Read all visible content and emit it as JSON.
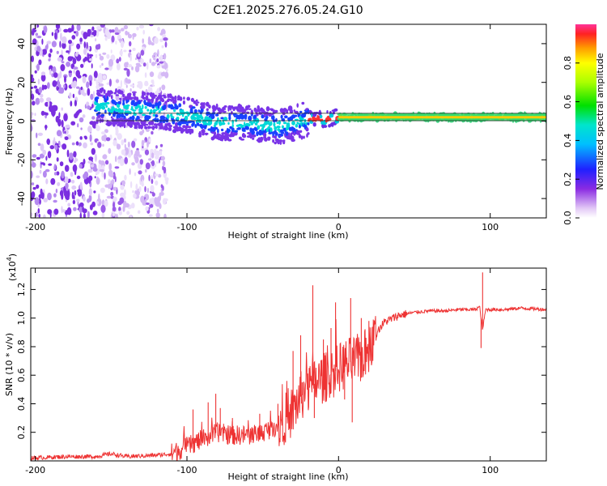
{
  "title": "C2E1.2025.276.05.24.G10",
  "chart_data": [
    {
      "type": "heatmap",
      "name": "spectrogram",
      "xlabel": "Height of straight line (km)",
      "ylabel": "Frequency (Hz)",
      "xlim": [
        -203,
        137
      ],
      "ylim": [
        -50,
        50
      ],
      "xticks": [
        -200,
        -100,
        0,
        100
      ],
      "xtick_labels": [
        "-200",
        "-100",
        "0",
        "100"
      ],
      "yticks": [
        -40,
        -20,
        0,
        20,
        40
      ],
      "ytick_labels": [
        "-40",
        "-20",
        "0",
        "20",
        "40"
      ],
      "colorbar": {
        "label": "Normalized spectral amplitude",
        "range": [
          0,
          1
        ],
        "ticks": [
          0.0,
          0.2,
          0.4,
          0.6,
          0.8
        ],
        "tick_labels": [
          "0.0",
          "0.2",
          "0.4",
          "0.6",
          "0.8"
        ]
      },
      "tracked_line": {
        "x": [
          -160,
          -140,
          -120,
          -100,
          -80,
          -60,
          -40,
          -30,
          -20,
          -10,
          0,
          20,
          40,
          60,
          80,
          100,
          137
        ],
        "frequency": [
          8,
          6,
          5,
          3,
          -1,
          -1,
          -3,
          -1,
          1,
          1,
          2,
          2,
          2,
          2,
          2,
          2,
          2
        ]
      },
      "noise_region_x": [
        -203,
        -113
      ]
    },
    {
      "type": "line",
      "name": "snr",
      "xlabel": "Height of straight line (km)",
      "ylabel": "SNR (10 * v/v)",
      "yscale_label": "(x10",
      "yscale_exp": "4",
      "scale_multiplier": 10000,
      "xlim": [
        -203,
        137
      ],
      "ylim": [
        0,
        1.35
      ],
      "xticks": [
        -200,
        -100,
        0,
        100
      ],
      "xtick_labels": [
        "-200",
        "-100",
        "0",
        "100"
      ],
      "yticks": [
        0.2,
        0.4,
        0.6,
        0.8,
        1.0,
        1.2
      ],
      "ytick_labels": [
        "0.2",
        "0.4",
        "0.6",
        "0.8",
        "1.0",
        "1.2"
      ],
      "color": "#ee3333",
      "series": [
        {
          "name": "SNR",
          "x": [
            -203,
            -180,
            -160,
            -150,
            -140,
            -120,
            -110,
            -100,
            -90,
            -80,
            -70,
            -60,
            -50,
            -40,
            -35,
            -30,
            -25,
            -20,
            -15,
            -10,
            -5,
            0,
            5,
            10,
            15,
            20,
            25,
            30,
            40,
            50,
            60,
            70,
            80,
            90,
            93,
            95,
            97,
            100,
            110,
            120,
            137
          ],
          "y": [
            0.02,
            0.03,
            0.03,
            0.05,
            0.03,
            0.04,
            0.05,
            0.1,
            0.15,
            0.2,
            0.18,
            0.18,
            0.2,
            0.25,
            0.3,
            0.35,
            0.45,
            0.5,
            0.55,
            0.58,
            0.6,
            0.65,
            0.68,
            0.7,
            0.72,
            0.78,
            0.9,
            0.97,
            1.02,
            1.04,
            1.05,
            1.05,
            1.06,
            1.06,
            1.08,
            0.92,
            1.06,
            1.06,
            1.06,
            1.07,
            1.06
          ]
        }
      ],
      "spikes": [
        {
          "x": -96,
          "y": 0.36
        },
        {
          "x": -86,
          "y": 0.41
        },
        {
          "x": -81,
          "y": 0.47
        },
        {
          "x": -78,
          "y": 0.37
        },
        {
          "x": -70,
          "y": 0.3
        },
        {
          "x": -52,
          "y": 0.33
        },
        {
          "x": -40,
          "y": 0.4
        },
        {
          "x": -30,
          "y": 0.77
        },
        {
          "x": -25,
          "y": 0.88
        },
        {
          "x": -24,
          "y": 0.55
        },
        {
          "x": -20,
          "y": 0.45
        },
        {
          "x": -17,
          "y": 1.23
        },
        {
          "x": -16,
          "y": 0.3
        },
        {
          "x": -10,
          "y": 0.85
        },
        {
          "x": -5,
          "y": 0.93
        },
        {
          "x": -2,
          "y": 1.11
        },
        {
          "x": 4,
          "y": 0.43
        },
        {
          "x": 8,
          "y": 1.14
        },
        {
          "x": 9,
          "y": 0.27
        },
        {
          "x": 15,
          "y": 1.0
        },
        {
          "x": 20,
          "y": 0.98
        },
        {
          "x": 94,
          "y": 0.79
        },
        {
          "x": 95,
          "y": 1.32
        }
      ]
    }
  ]
}
